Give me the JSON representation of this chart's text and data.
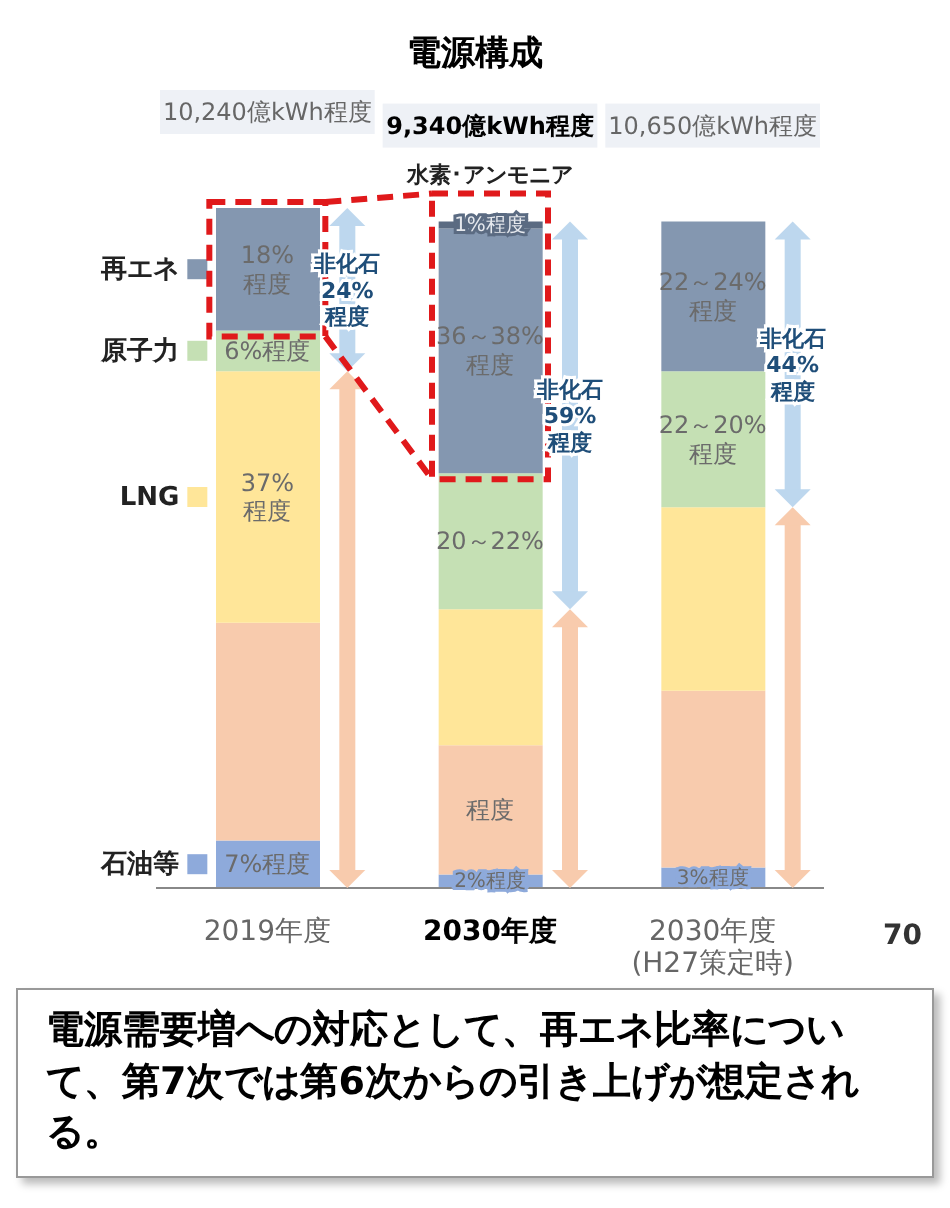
{
  "chart_data": {
    "type": "bar",
    "title": "電源構成",
    "stacked": true,
    "ylim": [
      0,
      100
    ],
    "tick_labels": "x",
    "legend": "left",
    "categories": [
      "2019年度",
      "2030年度",
      "2030年度\n(H27策定時)"
    ],
    "series": [
      {
        "name": "石油等",
        "color": "#8eaadb",
        "values": [
          7,
          2,
          3
        ],
        "value_labels": [
          "7%程度",
          "2%程度",
          "3%程度"
        ]
      },
      {
        "color": "#f8cbad",
        "values": [
          32,
          19,
          26
        ],
        "value_labels": [
          null,
          "程度",
          null
        ]
      },
      {
        "name": "LNG",
        "color": "#ffe699",
        "values": [
          37,
          20,
          27
        ],
        "value_labels": [
          "37%\n程度",
          null,
          null
        ]
      },
      {
        "name": "原子力",
        "color": "#c5e0b4",
        "values": [
          6,
          20,
          20
        ],
        "value_labels": [
          "6%程度",
          "20～22%",
          "22～20%\n程度"
        ]
      },
      {
        "name": "再エネ",
        "color": "#8497b0",
        "values": [
          18,
          36,
          22
        ],
        "value_labels": [
          "18%\n程度",
          "36～38%\n程度",
          "22～24%\n程度"
        ]
      },
      {
        "name": "水素･アンモニア",
        "color": "#5b6b82",
        "values": [
          null,
          1,
          null
        ],
        "value_labels": [
          null,
          "1%程度",
          null
        ]
      }
    ],
    "annotations": [
      "電源需要増への対応として、再エネ比率について、第7次では第6次からの引き上げが想定される。",
      "70",
      "非化石\n24%\n程度",
      "非化石\n59%\n程度",
      "非化石\n44%\n程度",
      "10,240億kWh程度",
      "9,340億kWh程度",
      "10,650億kWh程度"
    ]
  }
}
